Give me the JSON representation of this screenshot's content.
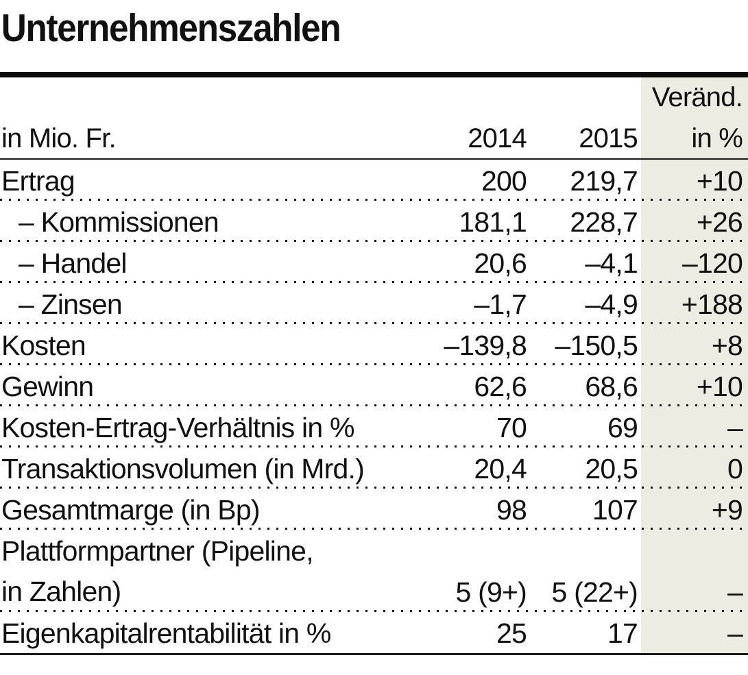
{
  "title": "Unternehmenszahlen",
  "colors": {
    "highlight_column_bg": "#edece3",
    "text": "#111111",
    "rule": "#0b0b0b"
  },
  "table": {
    "unit_label": "in Mio. Fr.",
    "col_2014": "2014",
    "col_2015": "2015",
    "change_header_line1": "Veränd.",
    "change_header_line2": "in %",
    "rows": [
      {
        "label": "Ertrag",
        "v2014": "200",
        "v2015": "219,7",
        "change": "+10"
      },
      {
        "label": "– Kommissionen",
        "v2014": "181,1",
        "v2015": "228,7",
        "change": "+26"
      },
      {
        "label": "– Handel",
        "v2014": "20,6",
        "v2015": "–4,1",
        "change": "–120"
      },
      {
        "label": "– Zinsen",
        "v2014": "–1,7",
        "v2015": "–4,9",
        "change": "+188"
      },
      {
        "label": "Kosten",
        "v2014": "–139,8",
        "v2015": "–150,5",
        "change": "+8"
      },
      {
        "label": "Gewinn",
        "v2014": "62,6",
        "v2015": "68,6",
        "change": "+10"
      },
      {
        "label": "Kosten-Ertrag-Verhältnis in %",
        "v2014": "70",
        "v2015": "69",
        "change": "–"
      },
      {
        "label": "Transaktionsvolumen (in Mrd.)",
        "v2014": "20,4",
        "v2015": "20,5",
        "change": "0"
      },
      {
        "label": "Gesamtmarge (in Bp)",
        "v2014": "98",
        "v2015": "107",
        "change": "+9"
      },
      {
        "label": "Plattformpartner (Pipeline,",
        "label2": "in Zahlen)",
        "v2014": "5 (9+)",
        "v2015": "5 (22+)",
        "change": "–"
      },
      {
        "label": "Eigenkapitalrentabilität in %",
        "v2014": "25",
        "v2015": "17",
        "change": "–"
      }
    ]
  },
  "chart_data": {
    "type": "table",
    "title": "Unternehmenszahlen",
    "unit": "in Mio. Fr.",
    "columns": [
      "in Mio. Fr.",
      "2014",
      "2015",
      "Veränd. in %"
    ],
    "rows": [
      [
        "Ertrag",
        "200",
        "219,7",
        "+10"
      ],
      [
        "– Kommissionen",
        "181,1",
        "228,7",
        "+26"
      ],
      [
        "– Handel",
        "20,6",
        "–4,1",
        "–120"
      ],
      [
        "– Zinsen",
        "–1,7",
        "–4,9",
        "+188"
      ],
      [
        "Kosten",
        "–139,8",
        "–150,5",
        "+8"
      ],
      [
        "Gewinn",
        "62,6",
        "68,6",
        "+10"
      ],
      [
        "Kosten-Ertrag-Verhältnis in %",
        "70",
        "69",
        "–"
      ],
      [
        "Transaktionsvolumen (in Mrd.)",
        "20,4",
        "20,5",
        "0"
      ],
      [
        "Gesamtmarge (in Bp)",
        "98",
        "107",
        "+9"
      ],
      [
        "Plattformpartner (Pipeline, in Zahlen)",
        "5 (9+)",
        "5 (22+)",
        "–"
      ],
      [
        "Eigenkapitalrentabilität in %",
        "25",
        "17",
        "–"
      ]
    ]
  }
}
